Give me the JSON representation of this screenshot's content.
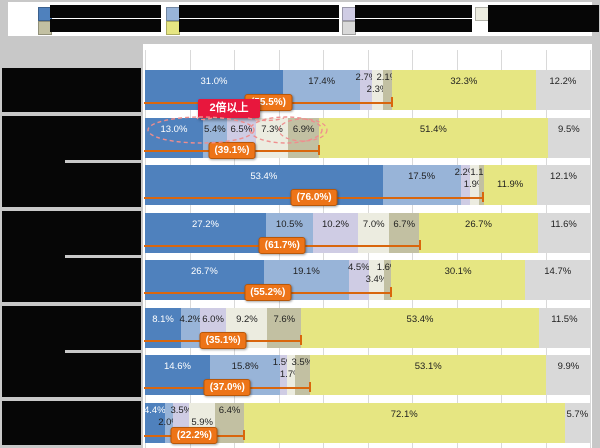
{
  "notes": "Japanese stacked horizontal bar chart; all category and legend text renders as solid black blocks (missing glyphs) in the source screenshot. Only numeric labels and the red callout are legible.",
  "colors": {
    "page_bg": "#c8c8c8",
    "plot_bg": "#ffffff",
    "gridline": "#d9d9d9",
    "tofu_block": "#060606",
    "segments": [
      "#4f81bd",
      "#98b4d8",
      "#cfcce4",
      "#ecece0",
      "#c2c0a2",
      "#e6e682",
      "#d9d9d9"
    ],
    "segment1_label_text": "#ffffff",
    "label_text": "#1f1f1f",
    "cumulative_line": "#d9660d",
    "cumulative_box": "#ed7418",
    "annotation_red": "#e8173d",
    "annotation_dashed_red": "#ef8e8e"
  },
  "legend": {
    "legible": false,
    "entries": [
      {
        "col": 0,
        "row": 0,
        "swatch": "#4f81bd",
        "label": ""
      },
      {
        "col": 1,
        "row": 0,
        "swatch": "#98b4d8",
        "label": ""
      },
      {
        "col": 2,
        "row": 0,
        "swatch": "#cfcce4",
        "label": ""
      },
      {
        "col": 3,
        "row": 0,
        "swatch": "#ecece0",
        "label": "",
        "tall": true
      },
      {
        "col": 0,
        "row": 1,
        "swatch": "#c2c0a2",
        "label": ""
      },
      {
        "col": 1,
        "row": 1,
        "swatch": "#e6e682",
        "label": ""
      },
      {
        "col": 2,
        "row": 1,
        "swatch": "#d9d9d9",
        "label": ""
      }
    ]
  },
  "chart_data": {
    "type": "bar",
    "orientation": "horizontal-stacked",
    "unit": "%",
    "xlim": [
      0,
      100
    ],
    "grid": "vertical, every 10%",
    "legend_position": "top, 4 columns x 2 rows, labels unreadable",
    "series_count": 7,
    "rows": [
      {
        "label": "",
        "values": [
          31.0,
          17.4,
          2.7,
          2.3,
          2.1,
          32.3,
          12.2
        ],
        "labels": [
          "31.0%",
          "17.4%",
          "2.7%",
          "2.3%",
          "2.1%",
          "32.3%",
          "12.2%"
        ],
        "label_lines": [
          0,
          0,
          1,
          2,
          1,
          0,
          0
        ],
        "cumulative_value": 55.5,
        "cumulative_label": "(55.5%)"
      },
      {
        "label": "",
        "values": [
          13.0,
          5.4,
          6.5,
          7.3,
          6.9,
          51.4,
          9.5
        ],
        "labels": [
          "13.0%",
          "5.4%",
          "6.5%",
          "7.3%",
          "6.9%",
          "51.4%",
          "9.5%"
        ],
        "label_lines": [
          0,
          0,
          0,
          0,
          0,
          0,
          0
        ],
        "cumulative_value": 39.1,
        "cumulative_label": "(39.1%)"
      },
      {
        "label": "",
        "values": [
          53.4,
          17.5,
          2.2,
          1.9,
          1.1,
          11.9,
          12.1
        ],
        "labels": [
          "53.4%",
          "17.5%",
          "2.2%",
          "1.9%",
          "1.1%",
          "11.9%",
          "12.1%"
        ],
        "label_lines": [
          0,
          0,
          1,
          2,
          1,
          2,
          0
        ],
        "cumulative_value": 76.0,
        "cumulative_label": "(76.0%)"
      },
      {
        "label": "",
        "values": [
          27.2,
          10.5,
          10.2,
          7.0,
          6.7,
          26.7,
          11.6
        ],
        "labels": [
          "27.2%",
          "10.5%",
          "10.2%",
          "7.0%",
          "6.7%",
          "26.7%",
          "11.6%"
        ],
        "label_lines": [
          0,
          0,
          0,
          0,
          0,
          0,
          0
        ],
        "cumulative_value": 61.7,
        "cumulative_label": "(61.7%)"
      },
      {
        "label": "",
        "values": [
          26.7,
          19.1,
          4.5,
          3.4,
          1.6,
          30.1,
          14.7
        ],
        "labels": [
          "26.7%",
          "19.1%",
          "4.5%",
          "3.4%",
          "1.6%",
          "30.1%",
          "14.7%"
        ],
        "label_lines": [
          0,
          0,
          1,
          2,
          1,
          0,
          0
        ],
        "cumulative_value": 55.2,
        "cumulative_label": "(55.2%)"
      },
      {
        "label": "",
        "values": [
          8.1,
          4.2,
          6.0,
          9.2,
          7.6,
          53.4,
          11.5
        ],
        "labels": [
          "8.1%",
          "4.2%",
          "6.0%",
          "9.2%",
          "7.6%",
          "53.4%",
          "11.5%"
        ],
        "label_lines": [
          0,
          0,
          0,
          0,
          0,
          0,
          0
        ],
        "cumulative_value": 35.1,
        "cumulative_label": "(35.1%)"
      },
      {
        "label": "",
        "values": [
          14.6,
          15.8,
          1.5,
          1.7,
          3.5,
          53.1,
          9.9
        ],
        "labels": [
          "14.6%",
          "15.8%",
          "1.5%",
          "1.7%",
          "3.5%",
          "53.1%",
          "9.9%"
        ],
        "label_lines": [
          0,
          0,
          1,
          2,
          1,
          0,
          0
        ],
        "cumulative_value": 37.0,
        "cumulative_label": "(37.0%)"
      },
      {
        "label": "",
        "values": [
          4.4,
          2.0,
          3.5,
          5.9,
          6.4,
          72.1,
          5.7
        ],
        "labels": [
          "4.4%",
          "2.0%",
          "3.5%",
          "5.9%",
          "6.4%",
          "72.1%",
          "5.7%"
        ],
        "label_lines": [
          1,
          2,
          1,
          2,
          1,
          0,
          0
        ],
        "cumulative_value": 22.2,
        "cumulative_label": "(22.2%)"
      }
    ],
    "annotation": {
      "text": "2倍以上",
      "target_row_index": 1,
      "style": "red box with white text, dashed red ellipses circling row-2 value labels"
    }
  }
}
